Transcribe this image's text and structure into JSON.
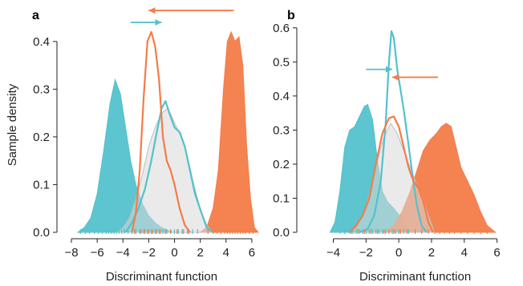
{
  "colors": {
    "teal": "#53c2cc",
    "orange": "#f47c48",
    "grey": "#d8d8d8",
    "axis": "#222222"
  },
  "chart_data": [
    {
      "type": "area",
      "panel_label": "a",
      "xlabel": "Discriminant function",
      "ylabel": "Sample density",
      "xlim": [
        -8,
        7
      ],
      "ylim": [
        0,
        0.45
      ],
      "xticks": [
        -8,
        -6,
        -4,
        -2,
        0,
        2,
        4,
        6
      ],
      "yticks": [
        0.0,
        0.1,
        0.2,
        0.3,
        0.4
      ],
      "xtick_labels": [
        "−8",
        "−6",
        "−4",
        "−2",
        "0",
        "2",
        "4",
        "6"
      ],
      "ytick_labels": [
        "0.0",
        "0.1",
        "0.2",
        "0.3",
        "0.4"
      ],
      "series": [
        {
          "style": "filled",
          "color": "teal",
          "x": [
            -7.5,
            -7,
            -6.5,
            -6,
            -5.5,
            -5,
            -4.6,
            -4.2,
            -3.8,
            -3.4,
            -3,
            -2.5,
            -2,
            -1.5,
            -1,
            -0.5,
            0
          ],
          "y": [
            0.0,
            0.01,
            0.03,
            0.08,
            0.17,
            0.27,
            0.32,
            0.29,
            0.22,
            0.15,
            0.1,
            0.06,
            0.035,
            0.02,
            0.01,
            0.004,
            0.0
          ]
        },
        {
          "style": "filled",
          "color": "orange",
          "x": [
            2,
            2.5,
            3,
            3.4,
            3.8,
            4.1,
            4.4,
            4.7,
            5,
            5.3,
            5.6,
            5.9,
            6.2,
            6.5
          ],
          "y": [
            0.0,
            0.01,
            0.05,
            0.13,
            0.3,
            0.4,
            0.42,
            0.4,
            0.41,
            0.35,
            0.18,
            0.07,
            0.01,
            0.0
          ]
        },
        {
          "style": "filled",
          "color": "grey",
          "x": [
            -4.5,
            -4,
            -3.5,
            -3,
            -2.5,
            -2,
            -1.5,
            -1,
            -0.5,
            0,
            0.5,
            1,
            1.5,
            2,
            2.5,
            3
          ],
          "y": [
            0.0,
            0.01,
            0.03,
            0.07,
            0.12,
            0.18,
            0.22,
            0.25,
            0.26,
            0.23,
            0.2,
            0.16,
            0.1,
            0.05,
            0.015,
            0.0
          ]
        },
        {
          "style": "line",
          "color": "teal",
          "x": [
            -3.8,
            -3.3,
            -2.8,
            -2.3,
            -1.8,
            -1.3,
            -1,
            -0.7,
            -0.4,
            0,
            0.4,
            0.8,
            1.2,
            1.6,
            2.1,
            2.5,
            3
          ],
          "y": [
            0.0,
            0.02,
            0.05,
            0.09,
            0.15,
            0.22,
            0.26,
            0.275,
            0.25,
            0.22,
            0.21,
            0.18,
            0.13,
            0.08,
            0.04,
            0.01,
            0.0
          ]
        },
        {
          "style": "line",
          "color": "orange",
          "x": [
            -3.3,
            -3,
            -2.7,
            -2.4,
            -2.1,
            -1.8,
            -1.5,
            -1.2,
            -0.9,
            -0.6,
            -0.3,
            0,
            0.4,
            0.8,
            1.2
          ],
          "y": [
            0.0,
            0.04,
            0.13,
            0.28,
            0.4,
            0.42,
            0.39,
            0.32,
            0.2,
            0.15,
            0.13,
            0.1,
            0.05,
            0.015,
            0.0
          ]
        }
      ],
      "arrows": [
        {
          "color": "teal",
          "from": [
            -3.4,
            0.44
          ],
          "to": [
            -1.0,
            0.44
          ]
        },
        {
          "color": "orange",
          "from": [
            4.6,
            0.465
          ],
          "to": [
            -2.0,
            0.465
          ]
        }
      ],
      "rug_teal": [
        -7.3,
        -6.9,
        -6.6,
        -6.2,
        -5.9,
        -5.6,
        -5.3,
        -5.1,
        -4.9,
        -4.7,
        -4.5,
        -4.3,
        -4.1,
        -3.9,
        -3.6,
        -3.3,
        -3.0,
        -2.7,
        -2.4,
        -2.1,
        -1.8,
        -1.5,
        -1.2,
        -0.9,
        -0.6,
        -0.3,
        0,
        0.3,
        0.6,
        1.0,
        1.4,
        1.8
      ],
      "rug_orange": [
        -3.1,
        -2.6,
        -2.3,
        -2.0,
        -1.7,
        -1.4,
        -1.1,
        -0.7,
        -0.3,
        0.2,
        0.7,
        1.1,
        2.6,
        3.0,
        3.3,
        3.6,
        3.9,
        4.1,
        4.3,
        4.5,
        4.7,
        4.9,
        5.1,
        5.3,
        5.5,
        5.8,
        6.1
      ]
    },
    {
      "type": "area",
      "panel_label": "b",
      "xlabel": "Discriminant function",
      "ylabel": "",
      "xlim": [
        -5.3,
        7
      ],
      "ylim": [
        0,
        0.63
      ],
      "xticks": [
        -4,
        -2,
        0,
        2,
        4,
        6
      ],
      "yticks": [
        0.0,
        0.1,
        0.2,
        0.3,
        0.4,
        0.5,
        0.6
      ],
      "xtick_labels": [
        "−4",
        "−2",
        "0",
        "2",
        "4",
        "6"
      ],
      "ytick_labels": [
        "0.0",
        "0.1",
        "0.2",
        "0.3",
        "0.4",
        "0.5",
        "0.6"
      ],
      "series": [
        {
          "style": "filled",
          "color": "teal",
          "x": [
            -4.2,
            -3.9,
            -3.6,
            -3.3,
            -3,
            -2.7,
            -2.4,
            -2.1,
            -1.9,
            -1.6,
            -1.3,
            -1,
            -0.7,
            -0.3,
            0.2,
            0.6,
            1.0
          ],
          "y": [
            0.0,
            0.03,
            0.12,
            0.25,
            0.3,
            0.31,
            0.34,
            0.37,
            0.375,
            0.33,
            0.21,
            0.12,
            0.09,
            0.07,
            0.04,
            0.01,
            0.0
          ]
        },
        {
          "style": "filled",
          "color": "orange",
          "x": [
            -0.8,
            -0.3,
            0.2,
            0.7,
            1.1,
            1.5,
            1.9,
            2.3,
            2.6,
            2.9,
            3.2,
            3.5,
            3.8,
            4.2,
            4.6,
            5.0,
            5.4,
            5.9
          ],
          "y": [
            0.0,
            0.02,
            0.06,
            0.12,
            0.18,
            0.24,
            0.27,
            0.29,
            0.31,
            0.32,
            0.31,
            0.25,
            0.19,
            0.15,
            0.11,
            0.06,
            0.02,
            0.0
          ]
        },
        {
          "style": "filled",
          "color": "grey",
          "x": [
            -2.9,
            -2.5,
            -2.1,
            -1.7,
            -1.3,
            -0.9,
            -0.5,
            -0.1,
            0.3,
            0.7,
            1.1,
            1.4,
            1.8,
            2.2
          ],
          "y": [
            0.0,
            0.02,
            0.06,
            0.13,
            0.21,
            0.28,
            0.32,
            0.29,
            0.24,
            0.19,
            0.14,
            0.11,
            0.05,
            0.0
          ]
        },
        {
          "style": "line",
          "color": "teal",
          "x": [
            -2.4,
            -1.9,
            -1.5,
            -1.1,
            -0.8,
            -0.6,
            -0.45,
            -0.3,
            -0.1,
            0.1,
            0.3,
            0.5,
            0.8,
            1.1,
            1.4,
            1.7
          ],
          "y": [
            0.0,
            0.01,
            0.05,
            0.15,
            0.32,
            0.5,
            0.59,
            0.57,
            0.48,
            0.42,
            0.36,
            0.29,
            0.18,
            0.08,
            0.02,
            0.0
          ]
        },
        {
          "style": "line",
          "color": "orange",
          "x": [
            -3.0,
            -2.6,
            -2.2,
            -1.8,
            -1.4,
            -1.0,
            -0.6,
            -0.3,
            0,
            0.3,
            0.6,
            0.9,
            1.2,
            1.5,
            1.8,
            2.1
          ],
          "y": [
            0.0,
            0.02,
            0.05,
            0.1,
            0.2,
            0.29,
            0.335,
            0.34,
            0.31,
            0.25,
            0.19,
            0.15,
            0.13,
            0.09,
            0.03,
            0.0
          ]
        }
      ],
      "arrows": [
        {
          "color": "teal",
          "from": [
            -2.0,
            0.478
          ],
          "to": [
            -0.4,
            0.478
          ]
        },
        {
          "color": "orange",
          "from": [
            2.4,
            0.455
          ],
          "to": [
            -0.4,
            0.455
          ]
        }
      ],
      "rug_teal": [
        -3.6,
        -3.3,
        -3.0,
        -2.8,
        -2.6,
        -2.4,
        -2.2,
        -2.0,
        -1.8,
        -1.6,
        -1.4,
        -1.2,
        -1.0,
        -0.8,
        -0.6,
        -0.4,
        -0.2,
        0,
        0.3,
        0.6
      ],
      "rug_orange": [
        -2.9,
        -2.5,
        -2.1,
        -1.7,
        -1.3,
        -0.9,
        -0.6,
        -0.3,
        0.1,
        0.5,
        1.0,
        1.4,
        1.8,
        2.2,
        2.5,
        2.8,
        3.1,
        3.4,
        3.8,
        4.2,
        4.6,
        5.0,
        5.4
      ]
    }
  ]
}
